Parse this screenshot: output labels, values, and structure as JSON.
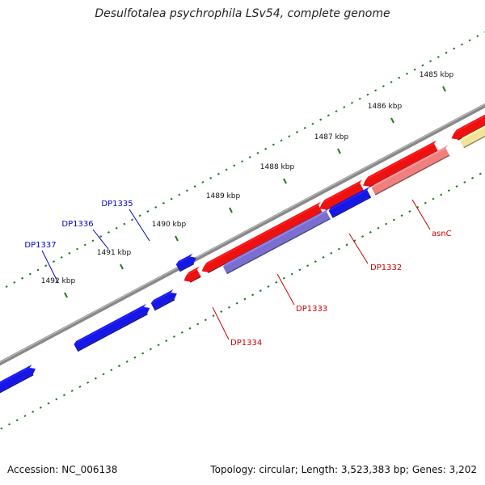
{
  "title": "Desulfotalea psychrophila LSv54, complete genome",
  "footer": {
    "accession": "Accession: NC_006138",
    "topology": "Topology: circular; Length: 3,523,383 bp; Genes: 3,202"
  },
  "colors": {
    "forward_gene": "#ee1111",
    "forward_gene_faded": "#f08080",
    "reverse_gene": "#1616e6",
    "reverse_gene_faded": "#7a6fd0",
    "other_feature": "#f2e39a",
    "backbone": "#888888",
    "ticks": "#1f7a1f",
    "forward_label": "#cc0000",
    "reverse_label": "#0000cc"
  },
  "ticks": [
    {
      "label": "1485 kbp"
    },
    {
      "label": "1486 kbp"
    },
    {
      "label": "1487 kbp"
    },
    {
      "label": "1488 kbp"
    },
    {
      "label": "1489 kbp"
    },
    {
      "label": "1490 kbp"
    },
    {
      "label": "1491 kbp"
    },
    {
      "label": "1492 kbp"
    }
  ],
  "gene_labels": [
    {
      "name": "DP1335",
      "strand": "reverse"
    },
    {
      "name": "DP1336",
      "strand": "reverse"
    },
    {
      "name": "DP1337",
      "strand": "reverse"
    },
    {
      "name": "asnC",
      "strand": "forward"
    },
    {
      "name": "DP1332",
      "strand": "forward"
    },
    {
      "name": "DP1333",
      "strand": "forward"
    },
    {
      "name": "DP1334",
      "strand": "forward"
    }
  ]
}
